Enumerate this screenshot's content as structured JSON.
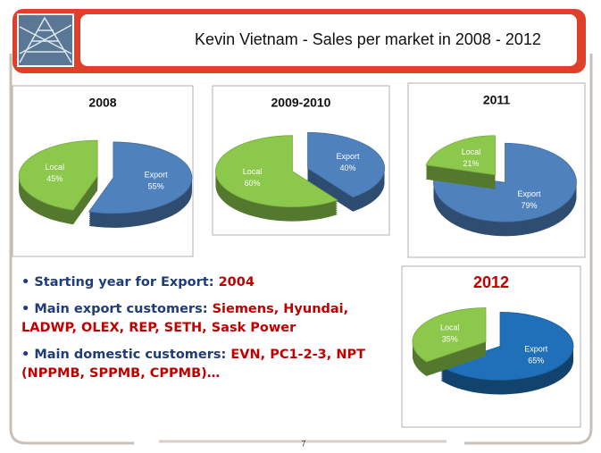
{
  "header": {
    "title": "Kevin Vietnam  - Sales per market  in 2008 - 2012"
  },
  "chart_data": [
    {
      "type": "pie",
      "title": "2008",
      "categories": [
        "Export",
        "Local"
      ],
      "values": [
        55,
        45
      ],
      "value_labels": [
        "55%",
        "45%"
      ],
      "colors": [
        "#4f81bd",
        "#8cc84b"
      ]
    },
    {
      "type": "pie",
      "title": "2009-2010",
      "categories": [
        "Export",
        "Local"
      ],
      "values": [
        40,
        60
      ],
      "value_labels": [
        "40%",
        "60%"
      ],
      "colors": [
        "#4f81bd",
        "#8cc84b"
      ]
    },
    {
      "type": "pie",
      "title": "2011",
      "categories": [
        "Export",
        "Local"
      ],
      "values": [
        79,
        21
      ],
      "value_labels": [
        "79%",
        "21%"
      ],
      "colors": [
        "#4f81bd",
        "#8cc84b"
      ]
    },
    {
      "type": "pie",
      "title": "2012",
      "categories": [
        "Export",
        "Local"
      ],
      "values": [
        65,
        35
      ],
      "value_labels": [
        "65%",
        "35%"
      ],
      "colors": [
        "#1f70b8",
        "#8cc84b"
      ]
    }
  ],
  "bullets": [
    {
      "label": "Starting year for Export:",
      "value": "2004"
    },
    {
      "label": "Main export customers:",
      "value": "Siemens, Hyundai, LADWP, OLEX, REP, SETH, Sask Power"
    },
    {
      "label": "Main domestic customers:",
      "value": "EVN, PC1-2-3, NPT (NPPMB, SPPMB, CPPMB)…"
    }
  ],
  "footer": {
    "page": "7"
  }
}
